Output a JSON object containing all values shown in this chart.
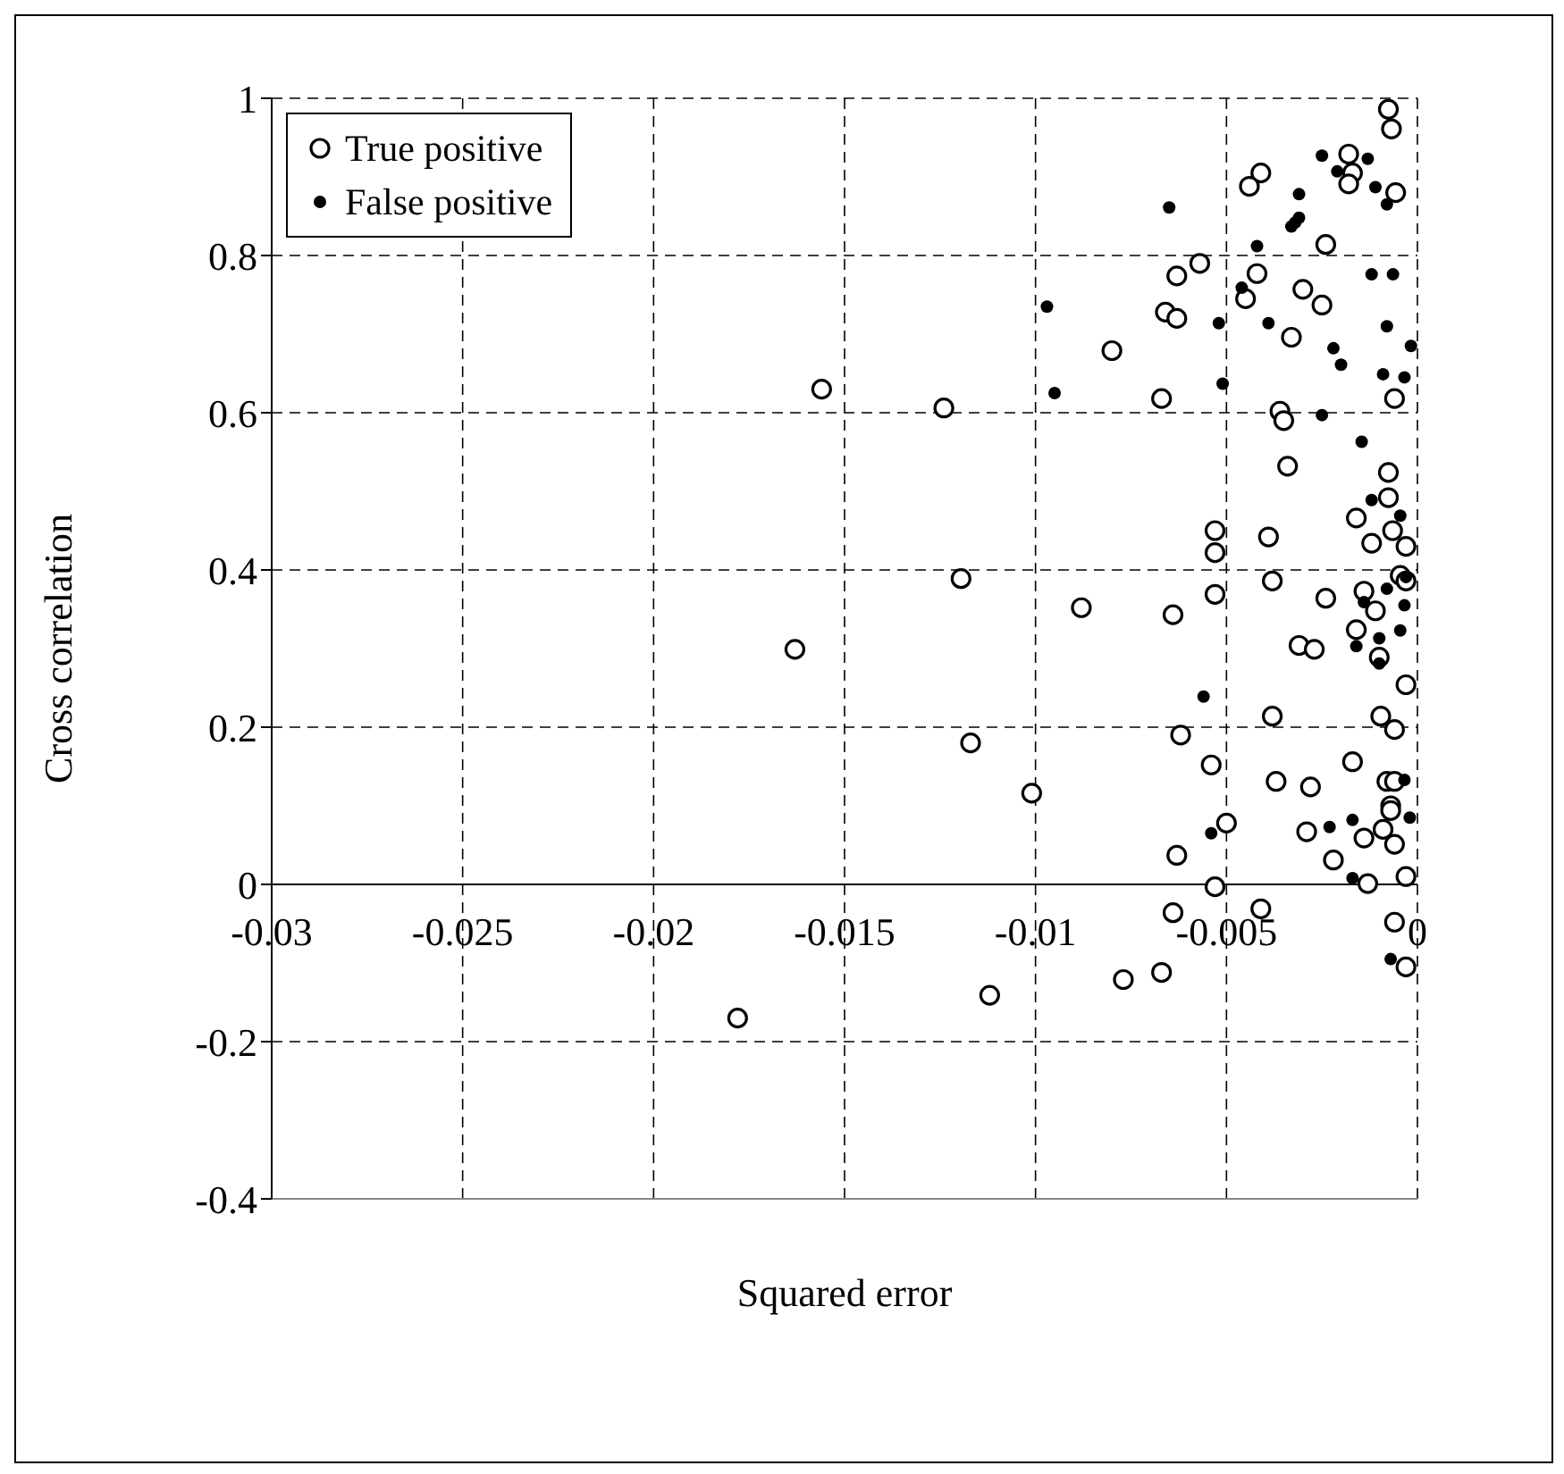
{
  "chart_data": {
    "type": "scatter",
    "xlabel": "Squared error",
    "ylabel": "Cross correlation",
    "xlim": [
      -0.03,
      0
    ],
    "xticks": [
      -0.03,
      -0.025,
      -0.02,
      -0.015,
      -0.01,
      -0.005,
      0
    ],
    "ylim": [
      -0.4,
      1
    ],
    "yticks": [
      -0.4,
      -0.2,
      0,
      0.2,
      0.4,
      0.6,
      0.8,
      1
    ],
    "grid": true,
    "legend": "top left",
    "marker": "circle",
    "series": [
      {
        "name": "True positive",
        "color": "#000000",
        "x": [
          -0.00076,
          -0.00068,
          -0.0018,
          -0.0017,
          -0.0018,
          -0.0041,
          -0.0044,
          -0.00057,
          -0.0024,
          -0.0057,
          -0.0063,
          -0.0042,
          -0.003,
          -0.0045,
          -0.0025,
          -0.0066,
          -0.0063,
          -0.0033,
          -0.008,
          -0.0067,
          -0.0006,
          -0.0036,
          -0.0035,
          -0.0124,
          -0.0156,
          -0.01195,
          -0.0163,
          -0.0117,
          -0.0088,
          -0.0101,
          -0.0112,
          -0.0178,
          -0.0034,
          -0.00076,
          -0.00076,
          -0.0016,
          -0.00065,
          -0.0053,
          -0.0039,
          -0.0012,
          -0.0003,
          -0.0053,
          -0.00045,
          -0.0003,
          -0.0038,
          -0.0064,
          -0.0053,
          -0.0024,
          -0.0014,
          -0.0011,
          -0.0016,
          -0.0031,
          -0.0027,
          -0.001,
          -0.0003,
          -0.0038,
          -0.00096,
          -0.0006,
          -0.0062,
          -0.0054,
          -0.0017,
          -0.0037,
          -0.0028,
          -0.0008,
          -0.0006,
          -0.0007,
          -0.0007,
          -0.005,
          -0.0029,
          -0.0009,
          -0.0014,
          -0.0006,
          -0.0063,
          -0.0022,
          -0.0013,
          -0.0003,
          -0.0053,
          -0.0041,
          -0.0064,
          -0.0006,
          -0.0003,
          -0.0077,
          -0.0067
        ],
        "values": [
          0.986,
          0.961,
          0.929,
          0.905,
          0.891,
          0.905,
          0.888,
          0.88,
          0.814,
          0.79,
          0.774,
          0.777,
          0.757,
          0.745,
          0.737,
          0.728,
          0.72,
          0.696,
          0.679,
          0.618,
          0.618,
          0.602,
          0.59,
          0.606,
          0.63,
          0.389,
          0.299,
          0.18,
          0.352,
          0.116,
          -0.141,
          -0.17,
          0.532,
          0.524,
          0.492,
          0.466,
          0.45,
          0.45,
          0.442,
          0.434,
          0.43,
          0.422,
          0.393,
          0.386,
          0.386,
          0.343,
          0.369,
          0.364,
          0.373,
          0.348,
          0.324,
          0.304,
          0.299,
          0.289,
          0.254,
          0.214,
          0.214,
          0.197,
          0.19,
          0.152,
          0.156,
          0.131,
          0.124,
          0.131,
          0.131,
          0.1,
          0.094,
          0.078,
          0.067,
          0.07,
          0.059,
          0.051,
          0.037,
          0.031,
          0.001,
          0.01,
          -0.003,
          -0.031,
          -0.036,
          -0.048,
          -0.105,
          -0.121,
          -0.112
        ]
      },
      {
        "name": "False positive",
        "color": "#000000",
        "x": [
          -0.0025,
          -0.0013,
          -0.0021,
          -0.0011,
          -0.0031,
          -0.0008,
          -0.0065,
          -0.0031,
          -0.0032,
          -0.0033,
          -0.0042,
          -0.0012,
          -0.00064,
          -0.0046,
          -0.0052,
          -0.0039,
          -0.0008,
          -0.0022,
          -0.00017,
          -0.002,
          -0.0009,
          -0.00034,
          -0.0051,
          -0.0025,
          -0.0097,
          -0.0095,
          -0.00146,
          -0.0012,
          -0.00045,
          -0.0003,
          -0.0008,
          -0.0014,
          -0.00034,
          -0.00045,
          -0.001,
          -0.0016,
          -0.001,
          -0.0056,
          -0.00034,
          -0.0002,
          -0.0054,
          -0.0023,
          -0.0017,
          -0.0017,
          -0.0007
        ],
        "values": [
          0.927,
          0.923,
          0.907,
          0.887,
          0.878,
          0.865,
          0.861,
          0.848,
          0.842,
          0.837,
          0.812,
          0.776,
          0.776,
          0.759,
          0.714,
          0.714,
          0.71,
          0.682,
          0.685,
          0.661,
          0.649,
          0.645,
          0.637,
          0.597,
          0.735,
          0.625,
          0.563,
          0.489,
          0.469,
          0.391,
          0.376,
          0.359,
          0.355,
          0.323,
          0.313,
          0.303,
          0.281,
          0.239,
          0.133,
          0.085,
          0.065,
          0.073,
          0.082,
          0.008,
          -0.095
        ]
      }
    ]
  }
}
